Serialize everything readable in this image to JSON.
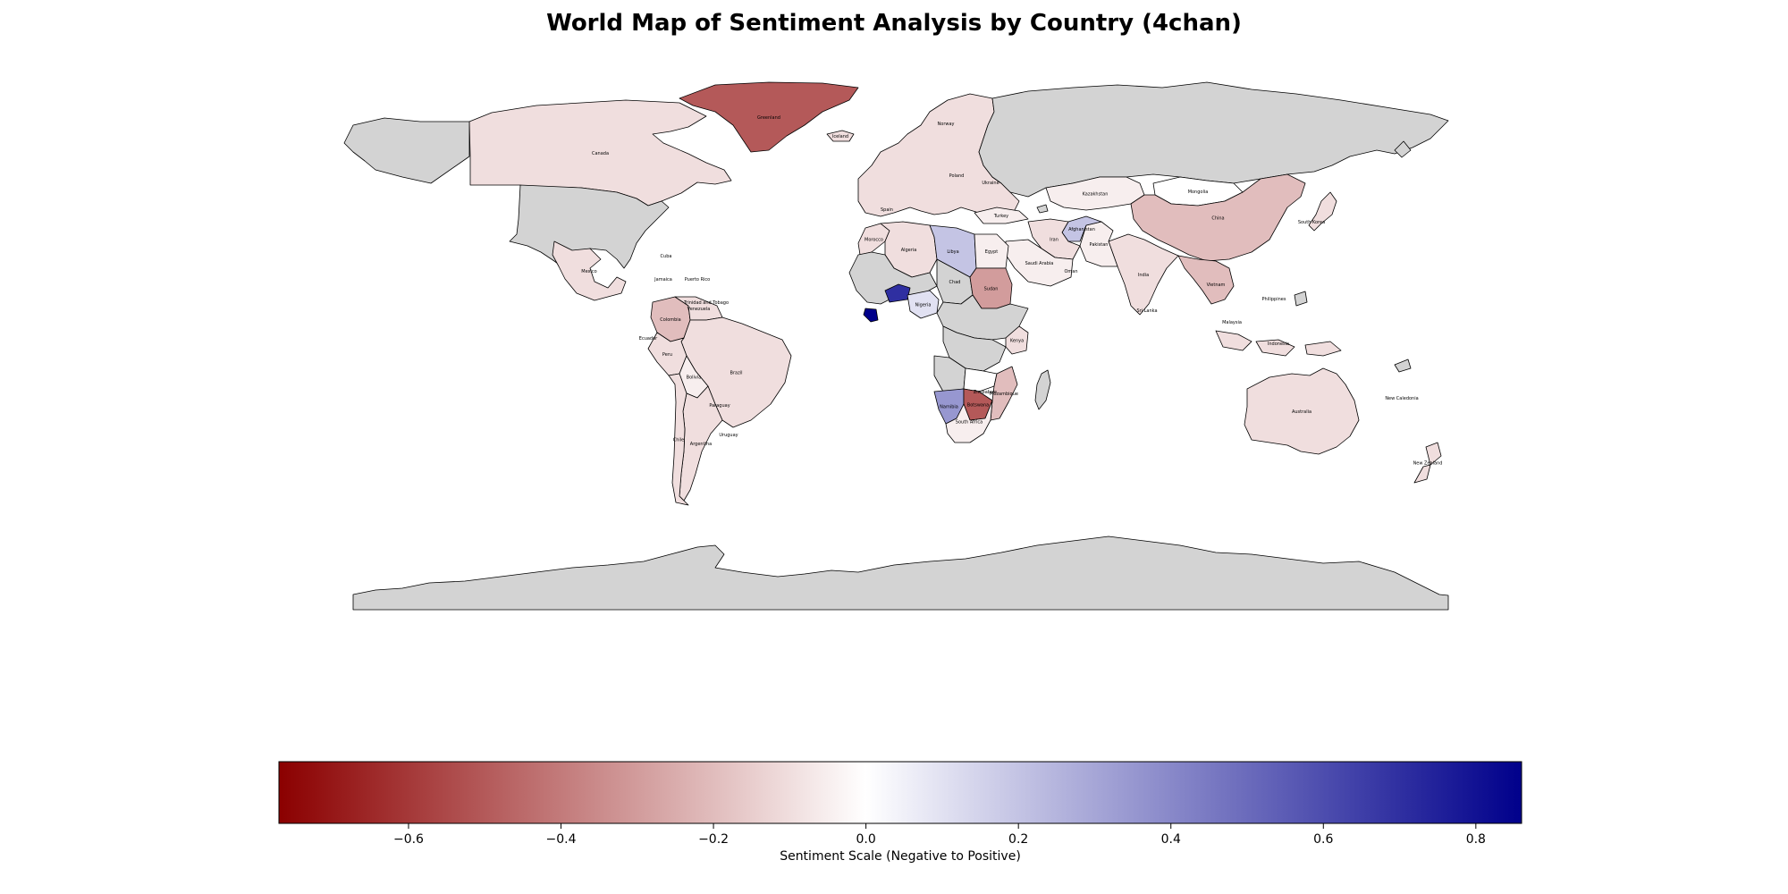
{
  "figure": {
    "title": "World Map of Sentiment Analysis by Country (4chan)"
  },
  "colorbar": {
    "label": "Sentiment Scale (Negative to Positive)",
    "vmin": -0.77,
    "vmax": 0.86,
    "colors": {
      "negative": "#8b0000",
      "neutral": "#ffffff",
      "positive": "#00008b",
      "no_data": "#d3d3d3"
    },
    "ticks": [
      {
        "value": -0.6,
        "label": "−0.6"
      },
      {
        "value": -0.4,
        "label": "−0.4"
      },
      {
        "value": -0.2,
        "label": "−0.2"
      },
      {
        "value": 0.0,
        "label": "0.0"
      },
      {
        "value": 0.2,
        "label": "0.2"
      },
      {
        "value": 0.4,
        "label": "0.4"
      },
      {
        "value": 0.6,
        "label": "0.6"
      },
      {
        "value": 0.8,
        "label": "0.8"
      }
    ]
  },
  "countries": [
    {
      "id": "canada",
      "name": "Canada",
      "sentiment": -0.1
    },
    {
      "id": "usa",
      "name": "",
      "sentiment": null
    },
    {
      "id": "mexico",
      "name": "Mexico",
      "sentiment": -0.1
    },
    {
      "id": "greenland",
      "name": "Greenland",
      "sentiment": -0.5
    },
    {
      "id": "iceland",
      "name": "Iceland",
      "sentiment": -0.1
    },
    {
      "id": "colombia",
      "name": "Colombia",
      "sentiment": -0.2
    },
    {
      "id": "venezuela",
      "name": "Venezuela",
      "sentiment": -0.1
    },
    {
      "id": "brazil",
      "name": "Brazil",
      "sentiment": -0.1
    },
    {
      "id": "peru",
      "name": "Peru",
      "sentiment": -0.1
    },
    {
      "id": "bolivia",
      "name": "Bolivia",
      "sentiment": -0.05
    },
    {
      "id": "argentina",
      "name": "Argentina",
      "sentiment": -0.1
    },
    {
      "id": "chile",
      "name": "Chile",
      "sentiment": -0.1
    },
    {
      "id": "europe",
      "name": "",
      "sentiment": -0.1
    },
    {
      "id": "russia",
      "name": "",
      "sentiment": null
    },
    {
      "id": "kazakhstan",
      "name": "Kazakhstan",
      "sentiment": -0.05
    },
    {
      "id": "mongolia",
      "name": "Mongolia",
      "sentiment": 0.0
    },
    {
      "id": "china",
      "name": "China",
      "sentiment": -0.2
    },
    {
      "id": "india",
      "name": "India",
      "sentiment": -0.1
    },
    {
      "id": "iran",
      "name": "Iran",
      "sentiment": -0.1
    },
    {
      "id": "saudi",
      "name": "Saudi Arabia",
      "sentiment": -0.05
    },
    {
      "id": "afghanistan",
      "name": "Afghanistan",
      "sentiment": 0.2
    },
    {
      "id": "pakistan",
      "name": "Pakistan",
      "sentiment": -0.05
    },
    {
      "id": "turkey",
      "name": "Turkey",
      "sentiment": -0.05
    },
    {
      "id": "morocco",
      "name": "Morocco",
      "sentiment": -0.1
    },
    {
      "id": "algeria",
      "name": "Algeria",
      "sentiment": -0.1
    },
    {
      "id": "libya",
      "name": "Libya",
      "sentiment": 0.2
    },
    {
      "id": "egypt",
      "name": "Egypt",
      "sentiment": -0.05
    },
    {
      "id": "chad",
      "name": "Chad",
      "sentiment": null
    },
    {
      "id": "sudan",
      "name": "Sudan",
      "sentiment": -0.3
    },
    {
      "id": "nigeria",
      "name": "Nigeria",
      "sentiment": 0.1
    },
    {
      "id": "westafrica",
      "name": "",
      "sentiment": null
    },
    {
      "id": "burkina",
      "name": "",
      "sentiment": 0.7
    },
    {
      "id": "liberia",
      "name": "",
      "sentiment": 0.86
    },
    {
      "id": "centralafrica",
      "name": "",
      "sentiment": null
    },
    {
      "id": "drc",
      "name": "",
      "sentiment": null
    },
    {
      "id": "kenya",
      "name": "Kenya",
      "sentiment": -0.1
    },
    {
      "id": "angola",
      "name": "",
      "sentiment": null
    },
    {
      "id": "zambia",
      "name": "",
      "sentiment": 0.0
    },
    {
      "id": "mozambique",
      "name": "Mozambique",
      "sentiment": -0.2
    },
    {
      "id": "namibia",
      "name": "Namibia",
      "sentiment": 0.35
    },
    {
      "id": "botswana",
      "name": "Botswana",
      "sentiment": -0.5
    },
    {
      "id": "southafrica",
      "name": "South Africa",
      "sentiment": -0.05
    },
    {
      "id": "madagascar",
      "name": "",
      "sentiment": null
    },
    {
      "id": "seasia",
      "name": "",
      "sentiment": -0.2
    },
    {
      "id": "indonesia",
      "name": "Indonesia",
      "sentiment": -0.1
    },
    {
      "id": "australia",
      "name": "Australia",
      "sentiment": -0.1
    },
    {
      "id": "newzealand",
      "name": "New Zealand",
      "sentiment": -0.1
    },
    {
      "id": "japan",
      "name": "",
      "sentiment": -0.1
    },
    {
      "id": "antarctica",
      "name": "",
      "sentiment": null
    }
  ],
  "extra_labels": [
    {
      "id": "lbl-norway",
      "text": "Norway"
    },
    {
      "id": "lbl-poland",
      "text": "Poland"
    },
    {
      "id": "lbl-ukraine",
      "text": "Ukraine"
    },
    {
      "id": "lbl-spain",
      "text": "Spain"
    },
    {
      "id": "lbl-malaysia",
      "text": "Malaysia"
    },
    {
      "id": "lbl-sri-lanka",
      "text": "Sri Lanka"
    },
    {
      "id": "lbl-new-caledonia",
      "text": "New Caledonia"
    },
    {
      "id": "lbl-zimbabwe",
      "text": "Zimbabwe"
    },
    {
      "id": "lbl-oman",
      "text": "Oman"
    },
    {
      "id": "lbl-paraguay",
      "text": "Paraguay"
    },
    {
      "id": "lbl-uruguay",
      "text": "Uruguay"
    },
    {
      "id": "lbl-ecuador",
      "text": "Ecuador"
    },
    {
      "id": "lbl-trinidad",
      "text": "Trinidad and Tobago"
    },
    {
      "id": "lbl-puerto-rico",
      "text": "Puerto Rico"
    },
    {
      "id": "lbl-jamaica",
      "text": "Jamaica"
    },
    {
      "id": "lbl-cuba",
      "text": "Cuba"
    },
    {
      "id": "lbl-south-korea",
      "text": "South Korea"
    },
    {
      "id": "lbl-vietnam",
      "text": "Vietnam"
    },
    {
      "id": "lbl-philippines",
      "text": "Philippines"
    }
  ]
}
